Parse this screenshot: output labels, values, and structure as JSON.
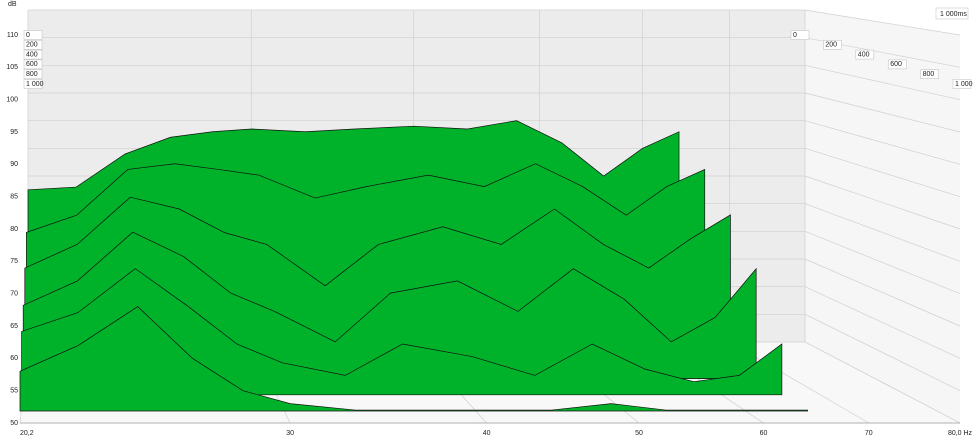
{
  "chart_data": {
    "type": "waterfall",
    "y_unit_label": "dB",
    "depth_label": "1 000ms",
    "x": [
      20.2,
      22,
      24,
      26,
      28,
      30,
      33,
      36,
      40,
      44,
      48,
      52,
      56,
      60,
      64
    ],
    "series": [
      {
        "name": "0",
        "color": "#00b22a",
        "values": [
          77.5,
          78,
          84,
          87,
          88,
          88.5,
          88,
          88.5,
          89,
          88.5,
          90,
          86,
          80,
          85,
          88
        ]
      },
      {
        "name": "200",
        "color": "#00b22a",
        "values": [
          72,
          75,
          83,
          84,
          83,
          82,
          78,
          80,
          82,
          80,
          84,
          80,
          75,
          80,
          83
        ]
      },
      {
        "name": "400",
        "color": "#00b22a",
        "values": [
          68,
          72,
          80,
          78,
          74,
          72,
          65,
          72,
          75,
          72,
          78,
          72,
          68,
          73,
          77
        ]
      },
      {
        "name": "600",
        "color": "#00b22a",
        "values": [
          64,
          68,
          76,
          72,
          66,
          63,
          58,
          66,
          68,
          63,
          70,
          65,
          58,
          62,
          70
        ]
      },
      {
        "name": "800",
        "color": "#00b22a",
        "values": [
          62,
          65,
          72,
          66,
          60,
          57,
          55,
          60,
          58,
          55,
          60,
          56,
          54,
          55,
          60
        ]
      },
      {
        "name": "1 000",
        "color": "#00b22a",
        "values": [
          58,
          62,
          68,
          60,
          55,
          53,
          52,
          52,
          52,
          52,
          53,
          52,
          52,
          52,
          52
        ]
      }
    ],
    "xlim": [
      20.2,
      80
    ],
    "log_x": true,
    "xticks": [
      {
        "value": 20.2,
        "label": "20,2"
      },
      30,
      40,
      50,
      60,
      70,
      {
        "value": 80,
        "label": "80,0 Hz"
      }
    ],
    "ylim": [
      50,
      110
    ],
    "yticks": [
      50,
      55,
      60,
      65,
      70,
      75,
      80,
      85,
      90,
      95,
      100,
      105,
      110
    ],
    "grid": true
  }
}
